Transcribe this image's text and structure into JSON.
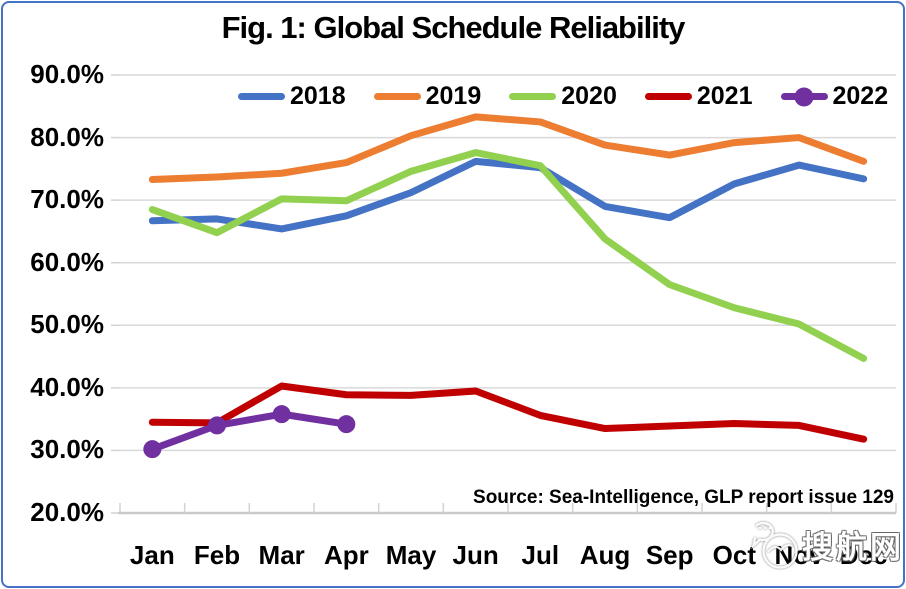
{
  "window": {
    "background": "#FFFFFF",
    "border_color": "#4472C4"
  },
  "chart_data": {
    "type": "line",
    "title": "Fig. 1: Global Schedule Reliability",
    "categories": [
      "Jan",
      "Feb",
      "Mar",
      "Apr",
      "May",
      "Jun",
      "Jul",
      "Aug",
      "Sep",
      "Oct",
      "Nov",
      "Dec"
    ],
    "y_ticks": [
      "90.0%",
      "80.0%",
      "70.0%",
      "60.0%",
      "50.0%",
      "40.0%",
      "30.0%",
      "20.0%"
    ],
    "ylim": [
      20,
      90
    ],
    "unit": "percent",
    "grid": "horizontal",
    "legend_position": "top-inside",
    "series": [
      {
        "name": "2018",
        "color": "#4472C4",
        "marker": false,
        "values": [
          66.7,
          67.0,
          65.4,
          67.5,
          71.2,
          76.2,
          75.2,
          69.0,
          67.2,
          72.6,
          75.6,
          73.4
        ]
      },
      {
        "name": "2019",
        "color": "#ED7D31",
        "marker": false,
        "values": [
          73.3,
          73.7,
          74.3,
          76.0,
          80.3,
          83.3,
          82.5,
          78.8,
          77.2,
          79.2,
          80.0,
          76.2
        ]
      },
      {
        "name": "2020",
        "color": "#92D050",
        "marker": false,
        "values": [
          68.5,
          64.8,
          70.2,
          69.9,
          74.6,
          77.6,
          75.5,
          63.8,
          56.5,
          52.8,
          50.2,
          44.7
        ]
      },
      {
        "name": "2021",
        "color": "#C00000",
        "marker": false,
        "values": [
          34.5,
          34.4,
          40.3,
          38.9,
          38.8,
          39.5,
          35.6,
          33.5,
          33.9,
          34.3,
          34.0,
          31.8
        ]
      },
      {
        "name": "2022",
        "color": "#7030A0",
        "marker": true,
        "values": [
          30.2,
          34.0,
          35.8,
          34.2,
          null,
          null,
          null,
          null,
          null,
          null,
          null,
          null
        ]
      }
    ],
    "source_note": "Source: Sea-Intelligence, GLP report issue 129",
    "axis_colors": {
      "gridline": "#D9D9D9",
      "tick": "#D3D3D3",
      "axis_line": "#C9C9C9"
    }
  },
  "watermark": {
    "text": "搜航网"
  }
}
